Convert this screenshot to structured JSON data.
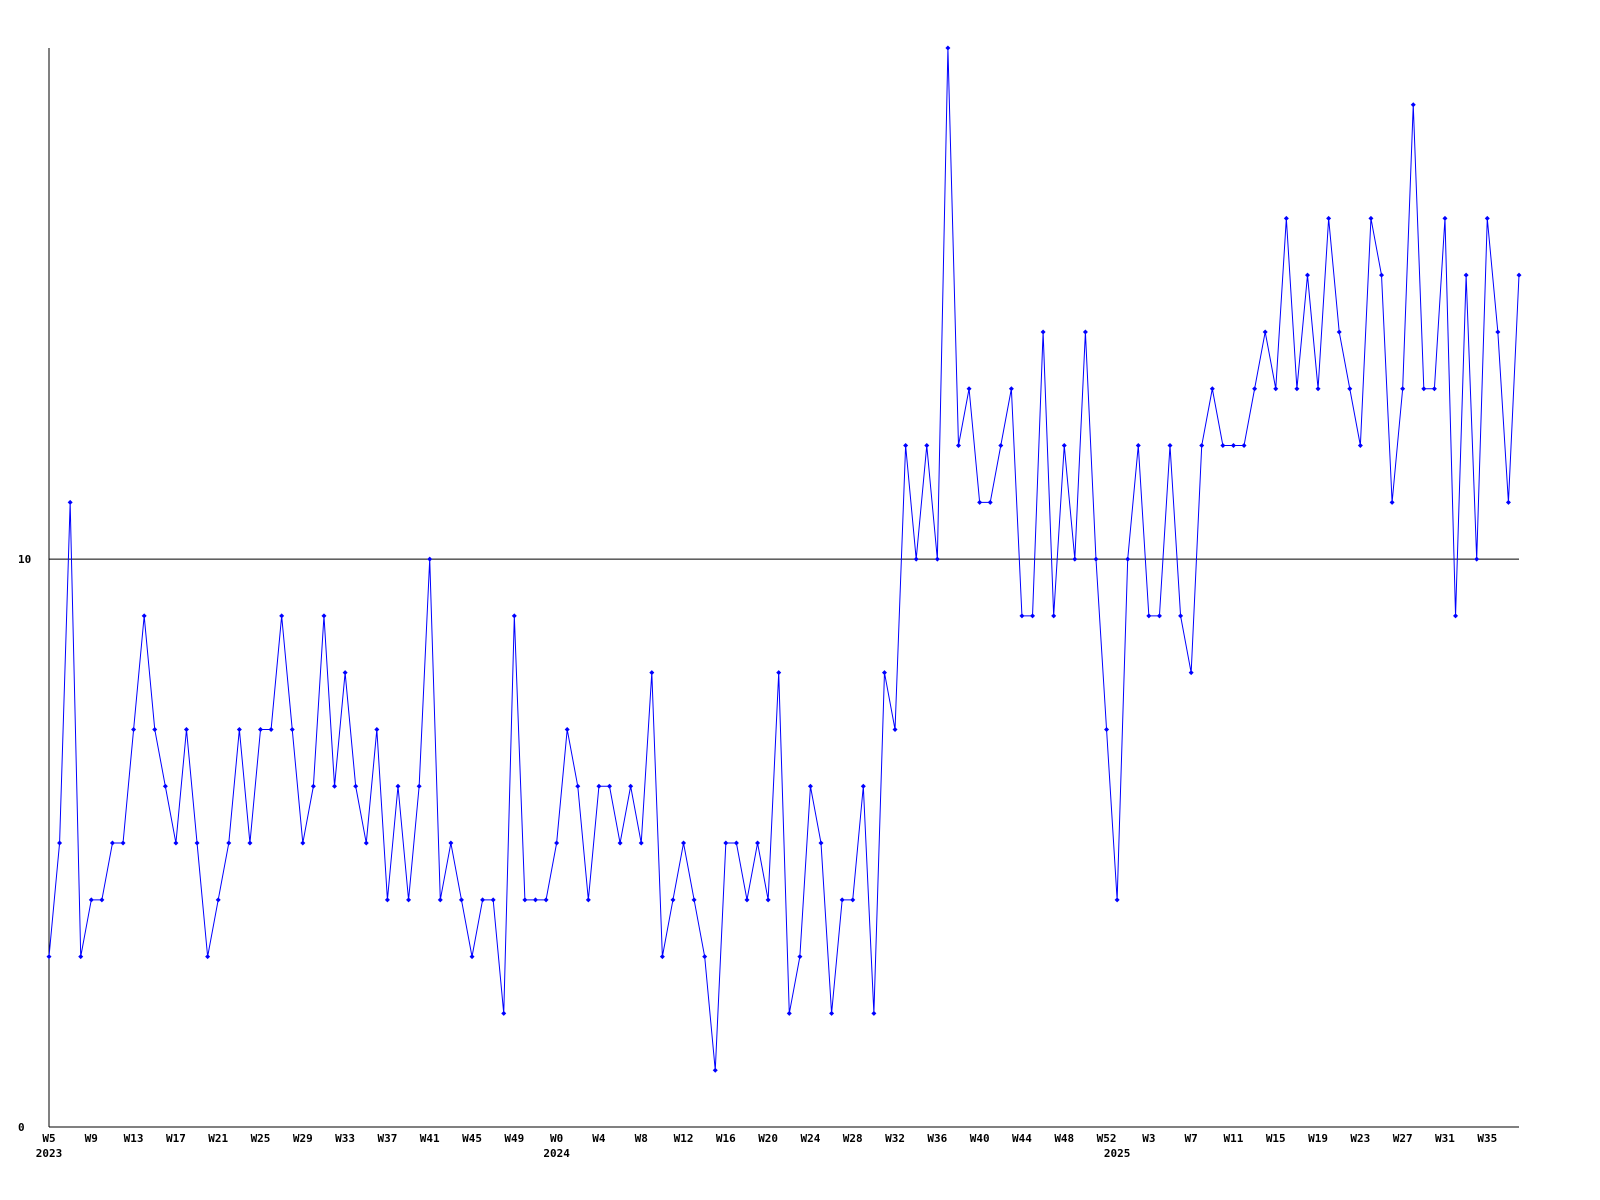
{
  "chart_data": {
    "type": "line",
    "categories": [
      "W5\n2023",
      null,
      null,
      null,
      "W9",
      null,
      null,
      null,
      "W13",
      null,
      null,
      null,
      "W17",
      null,
      null,
      null,
      "W21",
      null,
      null,
      null,
      "W25",
      null,
      null,
      null,
      "W29",
      null,
      null,
      null,
      "W33",
      null,
      null,
      null,
      "W37",
      null,
      null,
      null,
      "W41",
      null,
      null,
      null,
      "W45",
      null,
      null,
      null,
      "W49",
      null,
      null,
      null,
      "W0\n2024",
      null,
      null,
      null,
      "W4",
      null,
      null,
      null,
      "W8",
      null,
      null,
      null,
      "W12",
      null,
      null,
      null,
      "W16",
      null,
      null,
      null,
      "W20",
      null,
      null,
      null,
      "W24",
      null,
      null,
      null,
      "W28",
      null,
      null,
      null,
      "W32",
      null,
      null,
      null,
      "W36",
      null,
      null,
      null,
      "W40",
      null,
      null,
      null,
      "W44",
      null,
      null,
      null,
      "W48",
      null,
      null,
      null,
      "W52",
      "2025",
      null,
      null,
      "W3",
      null,
      null,
      null,
      "W7",
      null,
      null,
      null,
      "W11",
      null,
      null,
      null,
      "W15",
      null,
      null,
      null,
      "W19",
      null,
      null,
      null,
      "W23",
      null,
      null,
      null,
      "W27",
      null,
      null,
      null,
      "W31",
      null,
      null,
      null,
      "W35",
      null,
      null,
      null
    ],
    "values": [
      3,
      5,
      11,
      3,
      4,
      4,
      5,
      5,
      7,
      9,
      7,
      6,
      5,
      7,
      5,
      3,
      4,
      5,
      7,
      5,
      7,
      7,
      9,
      7,
      5,
      6,
      9,
      6,
      8,
      6,
      5,
      7,
      4,
      6,
      4,
      6,
      10,
      4,
      5,
      4,
      3,
      4,
      4,
      2,
      9,
      4,
      4,
      4,
      5,
      7,
      6,
      4,
      6,
      6,
      5,
      6,
      5,
      8,
      3,
      4,
      5,
      4,
      3,
      1,
      5,
      5,
      4,
      5,
      4,
      8,
      2,
      3,
      6,
      5,
      2,
      4,
      4,
      6,
      2,
      8,
      7,
      12,
      10,
      12,
      10,
      19,
      12,
      13,
      11,
      11,
      12,
      13,
      9,
      9,
      14,
      9,
      12,
      10,
      14,
      10,
      7,
      4,
      10,
      12,
      9,
      9,
      12,
      9,
      8,
      12,
      13,
      12,
      12,
      12,
      13,
      14,
      13,
      16,
      13,
      15,
      13,
      16,
      14,
      13,
      12,
      16,
      15,
      11,
      13,
      18,
      13,
      13,
      16,
      9,
      15,
      10,
      16,
      14,
      11,
      15
    ],
    "color": "#0000ff",
    "ylim": [
      0,
      19
    ],
    "yticks": [
      0,
      10
    ],
    "grid": true
  }
}
